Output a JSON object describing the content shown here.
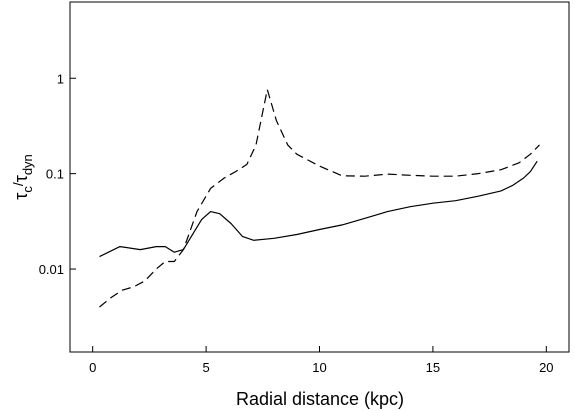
{
  "chart_data": {
    "type": "line",
    "xlabel": "Radial distance (kpc)",
    "ylabel": {
      "base": "τ",
      "num_sub": "c",
      "slash": "/",
      "den_base": "τ",
      "den_sub": "dyn"
    },
    "x_ticks": [
      0,
      5,
      10,
      15,
      20
    ],
    "x_tick_labels": [
      "0",
      "5",
      "10",
      "15",
      "20"
    ],
    "y_ticks": [
      0.01,
      0.1,
      1
    ],
    "y_tick_labels": [
      "0.01",
      "0.1",
      "1"
    ],
    "xlim": [
      -1,
      21
    ],
    "ylim": [
      0.00135,
      6.3
    ],
    "y_scale": "log",
    "grid": false,
    "series": [
      {
        "style": "solid",
        "x": [
          0.3,
          1.2,
          2.1,
          2.8,
          3.2,
          3.6,
          4.0,
          4.3,
          4.8,
          5.2,
          5.6,
          6.1,
          6.6,
          7.1,
          8.0,
          9.0,
          10.0,
          11.0,
          12.0,
          13.0,
          14.0,
          15.0,
          16.0,
          17.0,
          18.0,
          18.5,
          19.0,
          19.3,
          19.6
        ],
        "y": [
          0.0135,
          0.0172,
          0.016,
          0.0172,
          0.0172,
          0.015,
          0.016,
          0.021,
          0.033,
          0.04,
          0.038,
          0.03,
          0.022,
          0.02,
          0.021,
          0.023,
          0.026,
          0.029,
          0.034,
          0.04,
          0.045,
          0.049,
          0.052,
          0.058,
          0.066,
          0.075,
          0.09,
          0.105,
          0.135
        ]
      },
      {
        "style": "dashed",
        "x": [
          0.3,
          0.8,
          1.3,
          1.8,
          2.3,
          2.8,
          3.2,
          3.6,
          4.0,
          4.6,
          5.2,
          5.8,
          6.3,
          6.8,
          7.2,
          7.7,
          8.1,
          8.6,
          9.0,
          10.0,
          11.0,
          12.0,
          13.0,
          14.0,
          15.0,
          16.0,
          17.0,
          18.0,
          18.8,
          19.3,
          19.7
        ],
        "y": [
          0.004,
          0.005,
          0.006,
          0.0065,
          0.0075,
          0.01,
          0.012,
          0.012,
          0.016,
          0.04,
          0.07,
          0.09,
          0.105,
          0.125,
          0.2,
          0.76,
          0.36,
          0.2,
          0.16,
          0.12,
          0.095,
          0.094,
          0.099,
          0.096,
          0.094,
          0.094,
          0.1,
          0.11,
          0.13,
          0.16,
          0.2
        ]
      }
    ]
  }
}
